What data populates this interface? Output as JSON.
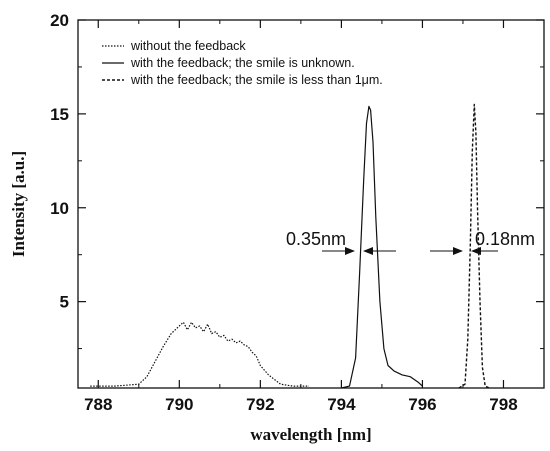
{
  "chart_data": {
    "type": "line",
    "xlabel": "wavelength [nm]",
    "ylabel": "Intensity [a.u.]",
    "xlim": [
      787.5,
      799
    ],
    "ylim": [
      0.4,
      20
    ],
    "x_ticks": [
      788,
      790,
      792,
      794,
      796,
      798
    ],
    "y_ticks": [
      5,
      10,
      15,
      20
    ],
    "x_tick_labels": [
      "788",
      "790",
      "792",
      "794",
      "796",
      "798"
    ],
    "y_tick_labels": [
      "5",
      "10",
      "15",
      "20"
    ],
    "grid": false,
    "legend_placement": "top-left",
    "legend": [
      "without the feedback",
      "with the feedback; the smile is unknown.",
      "with the feedback; the smile is less than 1μm."
    ],
    "annotations": [
      {
        "text": "0.35nm",
        "x": 794.7
      },
      {
        "text": "0.18nm",
        "x": 797.3
      }
    ],
    "series": [
      {
        "style": "dotted",
        "x": [
          787.8,
          788.4,
          789.0,
          789.2,
          789.4,
          789.6,
          789.8,
          790.0,
          790.1,
          790.2,
          790.3,
          790.4,
          790.5,
          790.6,
          790.7,
          790.8,
          790.9,
          791.0,
          791.1,
          791.2,
          791.3,
          791.4,
          791.5,
          791.6,
          791.7,
          791.8,
          791.9,
          792.0,
          792.2,
          792.5,
          792.8,
          793.2
        ],
        "y": [
          0.5,
          0.5,
          0.6,
          1.0,
          1.8,
          2.6,
          3.3,
          3.7,
          3.9,
          3.5,
          3.9,
          3.6,
          3.7,
          3.4,
          3.8,
          3.3,
          3.4,
          3.1,
          3.2,
          2.9,
          3.0,
          2.8,
          2.9,
          2.7,
          2.6,
          2.3,
          2.1,
          1.6,
          1.1,
          0.6,
          0.5,
          0.5
        ]
      },
      {
        "style": "solid",
        "x": [
          794.0,
          794.2,
          794.35,
          794.45,
          794.55,
          794.62,
          794.68,
          794.72,
          794.78,
          794.85,
          794.95,
          795.05,
          795.15,
          795.3,
          795.5,
          795.7,
          795.9,
          796.0
        ],
        "y": [
          0.4,
          0.5,
          2.0,
          6.5,
          11.5,
          14.5,
          15.4,
          15.2,
          13.5,
          9.5,
          5.0,
          2.5,
          1.6,
          1.3,
          1.1,
          1.0,
          0.7,
          0.5
        ]
      },
      {
        "style": "dashed",
        "x": [
          796.9,
          797.05,
          797.12,
          797.18,
          797.23,
          797.28,
          797.32,
          797.36,
          797.42,
          797.48,
          797.55,
          797.65
        ],
        "y": [
          0.4,
          0.6,
          3.0,
          8.0,
          13.0,
          15.5,
          14.0,
          10.0,
          5.0,
          1.5,
          0.5,
          0.4
        ]
      }
    ]
  }
}
